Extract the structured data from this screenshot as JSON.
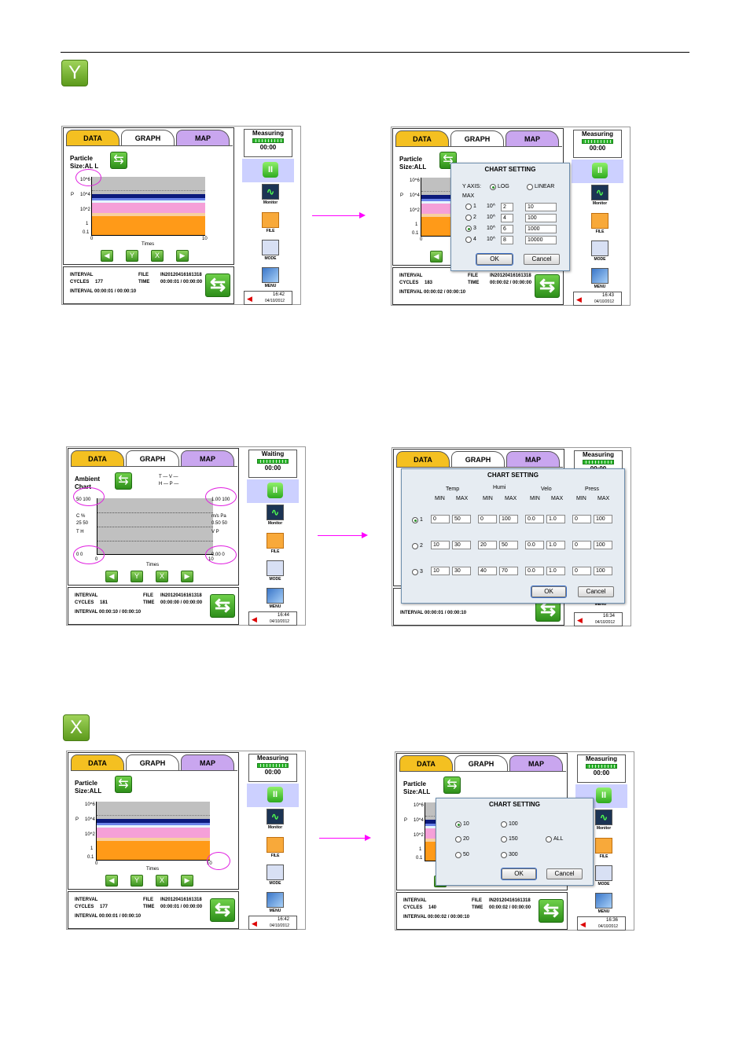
{
  "badges": {
    "y": "Y",
    "x": "X"
  },
  "tabs": {
    "data": "DATA",
    "graph": "GRAPH",
    "map": "MAP"
  },
  "particle": {
    "title_line1": "Particle",
    "title_line2_a": "Size:AL L",
    "title_line2": "Size:ALL",
    "ticks_y": [
      "10^6",
      "10^4",
      "10^2",
      "1",
      "0.1"
    ],
    "y_axis_label": "P",
    "x_min": "0",
    "x_max": "10",
    "x_label": "Times",
    "ctl_y": "Y",
    "ctl_x": "X"
  },
  "ambient": {
    "title_line1": "Ambient",
    "title_line2": "Chart",
    "legend_line1": "T — V —",
    "legend_line2": "H — P —",
    "left_top": "50  100",
    "left_mid": "25  50",
    "left_bot": "0   0",
    "left_units": "C    %",
    "left_names": "T    H",
    "right_top": "1.00  100",
    "right_mid": "0.50  50",
    "right_bot": "0.00  0",
    "right_units": "m/s  Pa",
    "right_names": "V     P",
    "x_min": "0",
    "x_max": "10",
    "x_label": "Times"
  },
  "info": {
    "interval": "INTERVAL",
    "cycles": "CYCLES",
    "file": "FILE",
    "time": "TIME",
    "file_value": "IN20120416161318",
    "s1": {
      "cycles": "177",
      "time": "00:00:01  /  00:00:00",
      "interval_line": "INTERVAL 00:00:01 / 00:00:10"
    },
    "s2": {
      "cycles": "183",
      "time": "00:00:02  /  00:00:00",
      "interval_line": "INTERVAL 00:00:02 / 00:00:10"
    },
    "s3": {
      "cycles": "181",
      "time": "00:00:00  /  00:00:00",
      "interval_line": "INTERVAL 00:00:10 / 00:00:10"
    },
    "s4": {
      "interval_line": "INTERVAL 00:00:01 / 00:00:10"
    },
    "s5": {
      "cycles": "177",
      "time": "00:00:01  /  00:00:00",
      "interval_line": "INTERVAL 00:00:01 / 00:00:10"
    },
    "s6": {
      "cycles": "140",
      "time": "00:00:02  /  00:00:00",
      "interval_line": "INTERVAL 00:00:02 / 00:00:10"
    }
  },
  "side": {
    "measuring": "Measuring",
    "waiting": "Waiting",
    "counter": "00:00",
    "monitor": "Monitor",
    "file": "FILE",
    "mode": "MODE",
    "menu": "MENU",
    "date": "04/10/2012",
    "times": [
      "16:42",
      "16:43",
      "16:44",
      "16:34",
      "16:42",
      "16:36"
    ]
  },
  "dialog_y": {
    "title": "CHART SETTING",
    "y_axis": "Y AXIS:",
    "log": "LOG",
    "linear": "LINEAR",
    "max": "MAX",
    "rows": [
      {
        "n": "1",
        "pre": "10^",
        "exp": "2",
        "val": "10"
      },
      {
        "n": "2",
        "pre": "10^",
        "exp": "4",
        "val": "100"
      },
      {
        "n": "3",
        "pre": "10^",
        "exp": "6",
        "val": "1000"
      },
      {
        "n": "4",
        "pre": "10^",
        "exp": "8",
        "val": "10000"
      }
    ],
    "ok": "OK",
    "cancel": "Cancel"
  },
  "dialog_amb": {
    "title": "CHART SETTING",
    "groups": [
      "Temp",
      "Humi",
      "Velo",
      "Press"
    ],
    "min": "MIN",
    "max": "MAX",
    "rows": [
      {
        "n": "1",
        "vals": [
          "0",
          "50",
          "0",
          "100",
          "0.0",
          "1.0",
          "0",
          "100"
        ]
      },
      {
        "n": "2",
        "vals": [
          "10",
          "30",
          "20",
          "50",
          "0.0",
          "1.0",
          "0",
          "100"
        ]
      },
      {
        "n": "3",
        "vals": [
          "10",
          "30",
          "40",
          "70",
          "0.0",
          "1.0",
          "0",
          "100"
        ]
      }
    ],
    "ok": "OK",
    "cancel": "Cancel"
  },
  "dialog_x": {
    "title": "CHART SETTING",
    "options": [
      "10",
      "100",
      "20",
      "150",
      "ALL",
      "50",
      "300"
    ],
    "ok": "OK",
    "cancel": "Cancel"
  }
}
